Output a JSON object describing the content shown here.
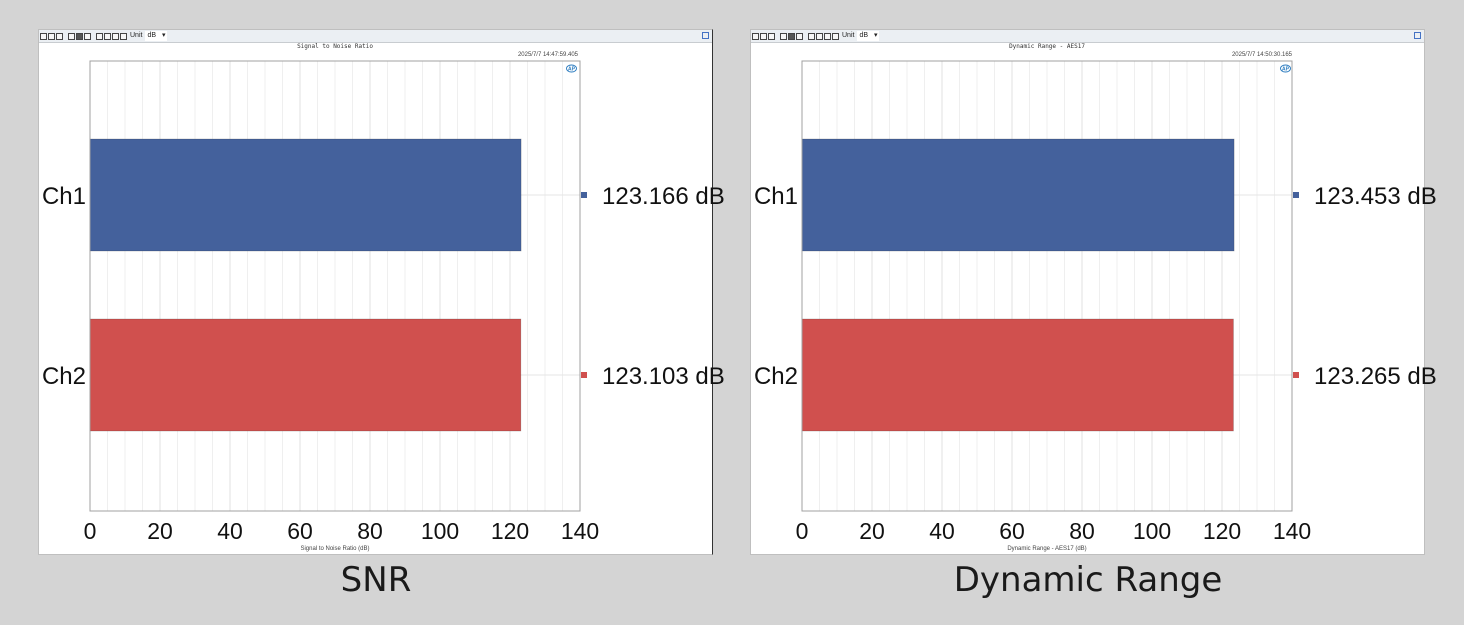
{
  "chart_data": [
    {
      "type": "bar",
      "orientation": "horizontal",
      "title": "Signal to Noise Ratio",
      "timestamp": "2025/7/7 14:47:59.405",
      "categories": [
        "Ch1",
        "Ch2"
      ],
      "values": [
        123.166,
        123.103
      ],
      "value_labels": [
        "123.166 dB",
        "123.103 dB"
      ],
      "colors": [
        "#44619c",
        "#d0504e"
      ],
      "xlabel": "Signal to Noise Ratio (dB)",
      "xlim": [
        0,
        140
      ],
      "xticks": [
        0,
        20,
        40,
        60,
        80,
        100,
        120,
        140
      ],
      "grid": true,
      "toolbar": {
        "unit_label": "Unit",
        "unit_value": "dB"
      },
      "caption": "SNR"
    },
    {
      "type": "bar",
      "orientation": "horizontal",
      "title": "Dynamic Range - AES17",
      "timestamp": "2025/7/7 14:50:30.165",
      "categories": [
        "Ch1",
        "Ch2"
      ],
      "values": [
        123.453,
        123.265
      ],
      "value_labels": [
        "123.453 dB",
        "123.265 dB"
      ],
      "colors": [
        "#44619c",
        "#d0504e"
      ],
      "xlabel": "Dynamic Range - AES17 (dB)",
      "xlim": [
        0,
        140
      ],
      "xticks": [
        0,
        20,
        40,
        60,
        80,
        100,
        120,
        140
      ],
      "grid": true,
      "toolbar": {
        "unit_label": "Unit",
        "unit_value": "dB"
      },
      "caption": "Dynamic Range"
    }
  ]
}
